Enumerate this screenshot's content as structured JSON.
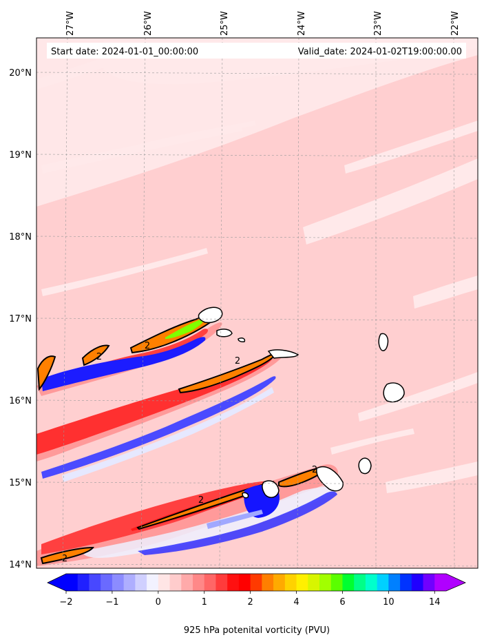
{
  "map": {
    "start_date_text": "Start date: 2024-01-01_00:00:00",
    "valid_date_text": "Valid_date: 2024-01-02T19:00:00.00",
    "lon_labels": [
      "27°W",
      "26°W",
      "25°W",
      "24°W",
      "23°W",
      "22°W"
    ],
    "lat_labels": [
      "20°N",
      "19°N",
      "18°N",
      "17°N",
      "16°N",
      "15°N",
      "14°N"
    ],
    "contour_label": "2",
    "colorbar": {
      "title": "925 hPa potenital vorticity (PVU)",
      "tick_labels": [
        "−2",
        "−1",
        "0",
        "1",
        "2",
        "4",
        "6",
        "10",
        "14"
      ],
      "colors": [
        "#0000ff",
        "#2020ff",
        "#4848ff",
        "#6a6aff",
        "#8c8cff",
        "#aeaeff",
        "#d0d0ff",
        "#f2f2ff",
        "#ffe5e5",
        "#ffcccc",
        "#ffaaaa",
        "#ff8888",
        "#ff6666",
        "#ff3b3b",
        "#ff1010",
        "#ff0000",
        "#ff3a00",
        "#ff7f00",
        "#ffaa00",
        "#ffd200",
        "#fff000",
        "#d8f500",
        "#a2ff00",
        "#5aff00",
        "#00ff30",
        "#00ff88",
        "#00ffcc",
        "#00d0ff",
        "#0080ff",
        "#0033ff",
        "#2000ff",
        "#7000ff",
        "#b000ff"
      ],
      "under_color": "#0000ff",
      "over_color": "#b000ff"
    }
  }
}
